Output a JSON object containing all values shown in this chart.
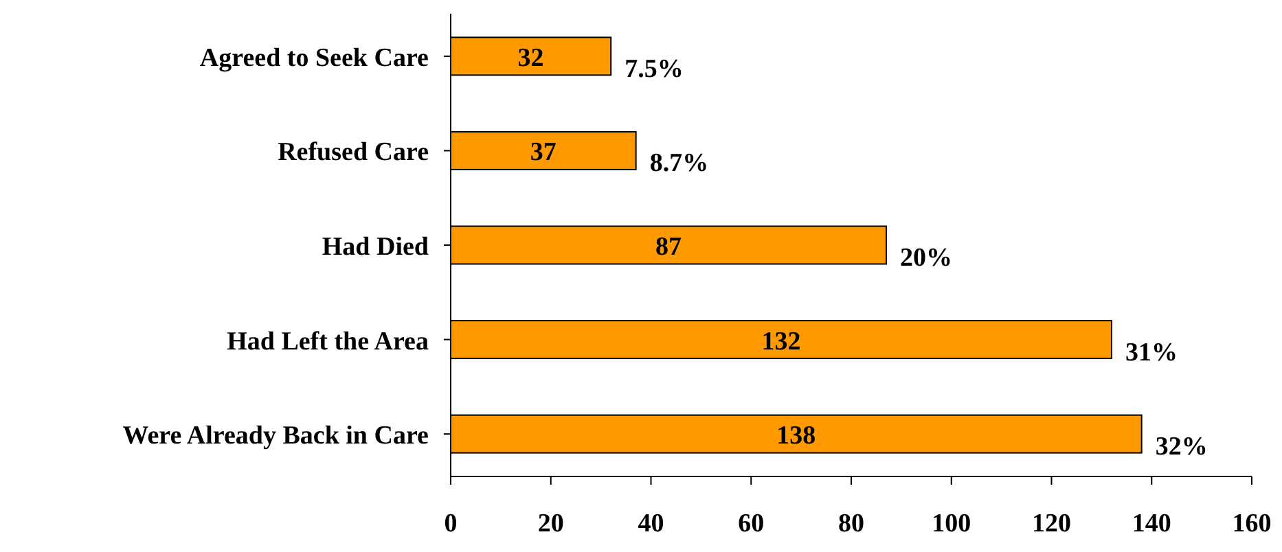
{
  "chart_data": {
    "type": "bar",
    "orientation": "horizontal",
    "categories": [
      "Agreed to Seek Care",
      "Refused Care",
      "Had Died",
      "Had Left the Area",
      "Were Already Back in Care"
    ],
    "values": [
      32,
      37,
      87,
      132,
      138
    ],
    "color": "#ff9900",
    "data_labels": true,
    "xlim": [
      0,
      160
    ],
    "xticks": [
      0,
      20,
      40,
      60,
      80,
      100,
      120,
      140,
      160
    ],
    "grid": false,
    "annotations": [
      {
        "text": "7.5%",
        "x": 32,
        "y": "Agreed to Seek Care"
      },
      {
        "text": "8.7%",
        "x": 37,
        "y": "Refused Care"
      },
      {
        "text": "20%",
        "x": 87,
        "y": "Had Died"
      },
      {
        "text": "31%",
        "x": 132,
        "y": "Had Left the Area"
      },
      {
        "text": "32%",
        "x": 138,
        "y": "Were Already Back in Care"
      }
    ]
  }
}
